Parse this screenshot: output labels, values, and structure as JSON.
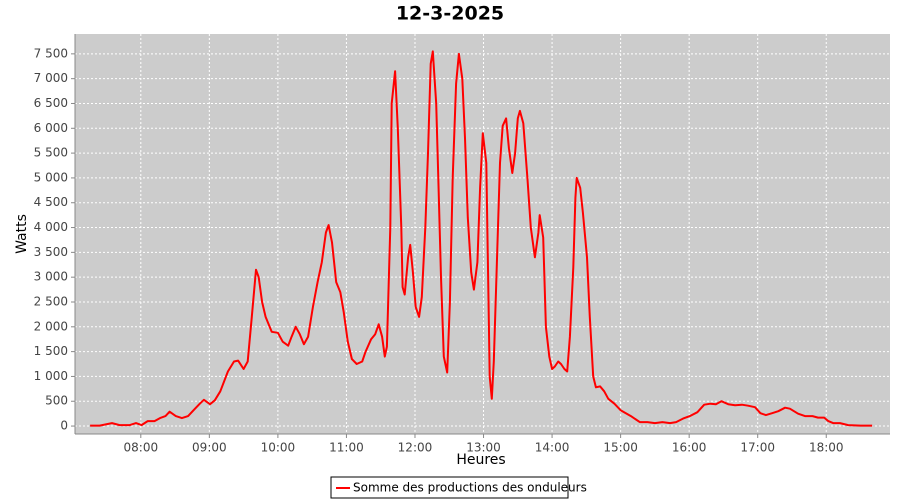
{
  "chart_data": {
    "type": "line",
    "title": "12-3-2025",
    "x_label": "Heures",
    "y_label": "Watts",
    "x": [
      7.26,
      7.4,
      7.58,
      7.69,
      7.84,
      7.93,
      8.01,
      8.1,
      8.2,
      8.28,
      8.36,
      8.42,
      8.51,
      8.6,
      8.69,
      8.79,
      8.86,
      8.92,
      9.01,
      9.08,
      9.16,
      9.27,
      9.36,
      9.42,
      9.5,
      9.56,
      9.62,
      9.68,
      9.72,
      9.77,
      9.82,
      9.91,
      10.0,
      10.07,
      10.15,
      10.2,
      10.26,
      10.32,
      10.38,
      10.44,
      10.51,
      10.58,
      10.64,
      10.7,
      10.74,
      10.79,
      10.85,
      10.91,
      10.96,
      11.02,
      11.08,
      11.15,
      11.23,
      11.28,
      11.36,
      11.42,
      11.47,
      11.52,
      11.56,
      11.59,
      11.64,
      11.66,
      11.71,
      11.75,
      11.8,
      11.82,
      11.85,
      11.9,
      11.93,
      11.97,
      12.01,
      12.06,
      12.1,
      12.15,
      12.19,
      12.23,
      12.26,
      12.31,
      12.34,
      12.38,
      12.42,
      12.47,
      12.51,
      12.55,
      12.6,
      12.64,
      12.69,
      12.73,
      12.77,
      12.82,
      12.86,
      12.91,
      12.95,
      12.99,
      13.04,
      13.07,
      13.09,
      13.12,
      13.15,
      13.2,
      13.24,
      13.28,
      13.33,
      13.37,
      13.42,
      13.46,
      13.5,
      13.53,
      13.58,
      13.64,
      13.69,
      13.75,
      13.8,
      13.82,
      13.87,
      13.91,
      13.96,
      14.0,
      14.04,
      14.09,
      14.13,
      14.18,
      14.22,
      14.26,
      14.31,
      14.34,
      14.36,
      14.41,
      14.45,
      14.51,
      14.55,
      14.6,
      14.64,
      14.7,
      14.76,
      14.82,
      14.91,
      15.0,
      15.15,
      15.28,
      15.39,
      15.5,
      15.61,
      15.72,
      15.81,
      15.91,
      16.01,
      16.12,
      16.22,
      16.31,
      16.39,
      16.47,
      16.57,
      16.67,
      16.77,
      16.86,
      16.96,
      17.04,
      17.12,
      17.21,
      17.3,
      17.4,
      17.47,
      17.59,
      17.69,
      17.8,
      17.88,
      17.97,
      18.03,
      18.1,
      18.2,
      18.32,
      18.5,
      18.67
    ],
    "series": [
      {
        "name": "Somme des productions des onduleurs",
        "color": "#ff0000",
        "values": [
          10,
          10,
          60,
          20,
          20,
          60,
          20,
          100,
          100,
          160,
          200,
          290,
          200,
          160,
          200,
          350,
          450,
          530,
          440,
          520,
          700,
          1100,
          1300,
          1320,
          1150,
          1300,
          2200,
          3150,
          3000,
          2500,
          2200,
          1900,
          1880,
          1700,
          1620,
          1800,
          2000,
          1850,
          1650,
          1800,
          2400,
          2900,
          3300,
          3900,
          4050,
          3700,
          2900,
          2700,
          2300,
          1700,
          1350,
          1250,
          1300,
          1500,
          1750,
          1850,
          2050,
          1800,
          1400,
          1600,
          4000,
          6500,
          7150,
          6000,
          4000,
          2800,
          2650,
          3400,
          3650,
          3100,
          2400,
          2200,
          2600,
          4000,
          5500,
          7300,
          7550,
          6500,
          5000,
          3000,
          1400,
          1080,
          2500,
          5000,
          6900,
          7500,
          7000,
          5800,
          4200,
          3100,
          2750,
          3300,
          4800,
          5900,
          5300,
          2800,
          1000,
          550,
          1300,
          3500,
          5300,
          6050,
          6200,
          5600,
          5100,
          5500,
          6200,
          6350,
          6100,
          5000,
          4000,
          3400,
          3900,
          4250,
          3800,
          2000,
          1400,
          1150,
          1200,
          1300,
          1250,
          1150,
          1100,
          1800,
          3200,
          4600,
          5000,
          4800,
          4300,
          3400,
          2200,
          1000,
          780,
          800,
          700,
          550,
          450,
          320,
          200,
          80,
          80,
          60,
          80,
          60,
          80,
          150,
          200,
          280,
          430,
          450,
          440,
          500,
          440,
          420,
          430,
          410,
          380,
          260,
          220,
          260,
          300,
          370,
          350,
          250,
          200,
          200,
          170,
          170,
          100,
          60,
          60,
          20,
          10,
          10
        ]
      }
    ],
    "xlim": [
      7.04,
      18.93
    ],
    "xticks": [
      {
        "value": 8,
        "label": "08:00"
      },
      {
        "value": 9,
        "label": "09:00"
      },
      {
        "value": 10,
        "label": "10:00"
      },
      {
        "value": 11,
        "label": "11:00"
      },
      {
        "value": 12,
        "label": "12:00"
      },
      {
        "value": 13,
        "label": "13:00"
      },
      {
        "value": 14,
        "label": "14:00"
      },
      {
        "value": 15,
        "label": "15:00"
      },
      {
        "value": 16,
        "label": "16:00"
      },
      {
        "value": 17,
        "label": "17:00"
      },
      {
        "value": 18,
        "label": "18:00"
      }
    ],
    "ylim": [
      -160,
      7900
    ],
    "yticks": [
      0,
      500,
      {
        "value": 1000,
        "label": "1 000"
      },
      {
        "value": 1500,
        "label": "1 500"
      },
      {
        "value": 2000,
        "label": "2 000"
      },
      {
        "value": 2500,
        "label": "2 500"
      },
      {
        "value": 3000,
        "label": "3 000"
      },
      {
        "value": 3500,
        "label": "3 500"
      },
      {
        "value": 4000,
        "label": "4 000"
      },
      {
        "value": 4500,
        "label": "4 500"
      },
      {
        "value": 5000,
        "label": "5 000"
      },
      {
        "value": 5500,
        "label": "5 500"
      },
      {
        "value": 6000,
        "label": "6 000"
      },
      {
        "value": 6500,
        "label": "6 500"
      },
      {
        "value": 7000,
        "label": "7 000"
      },
      {
        "value": 7500,
        "label": "7 500"
      }
    ],
    "grid": true
  }
}
